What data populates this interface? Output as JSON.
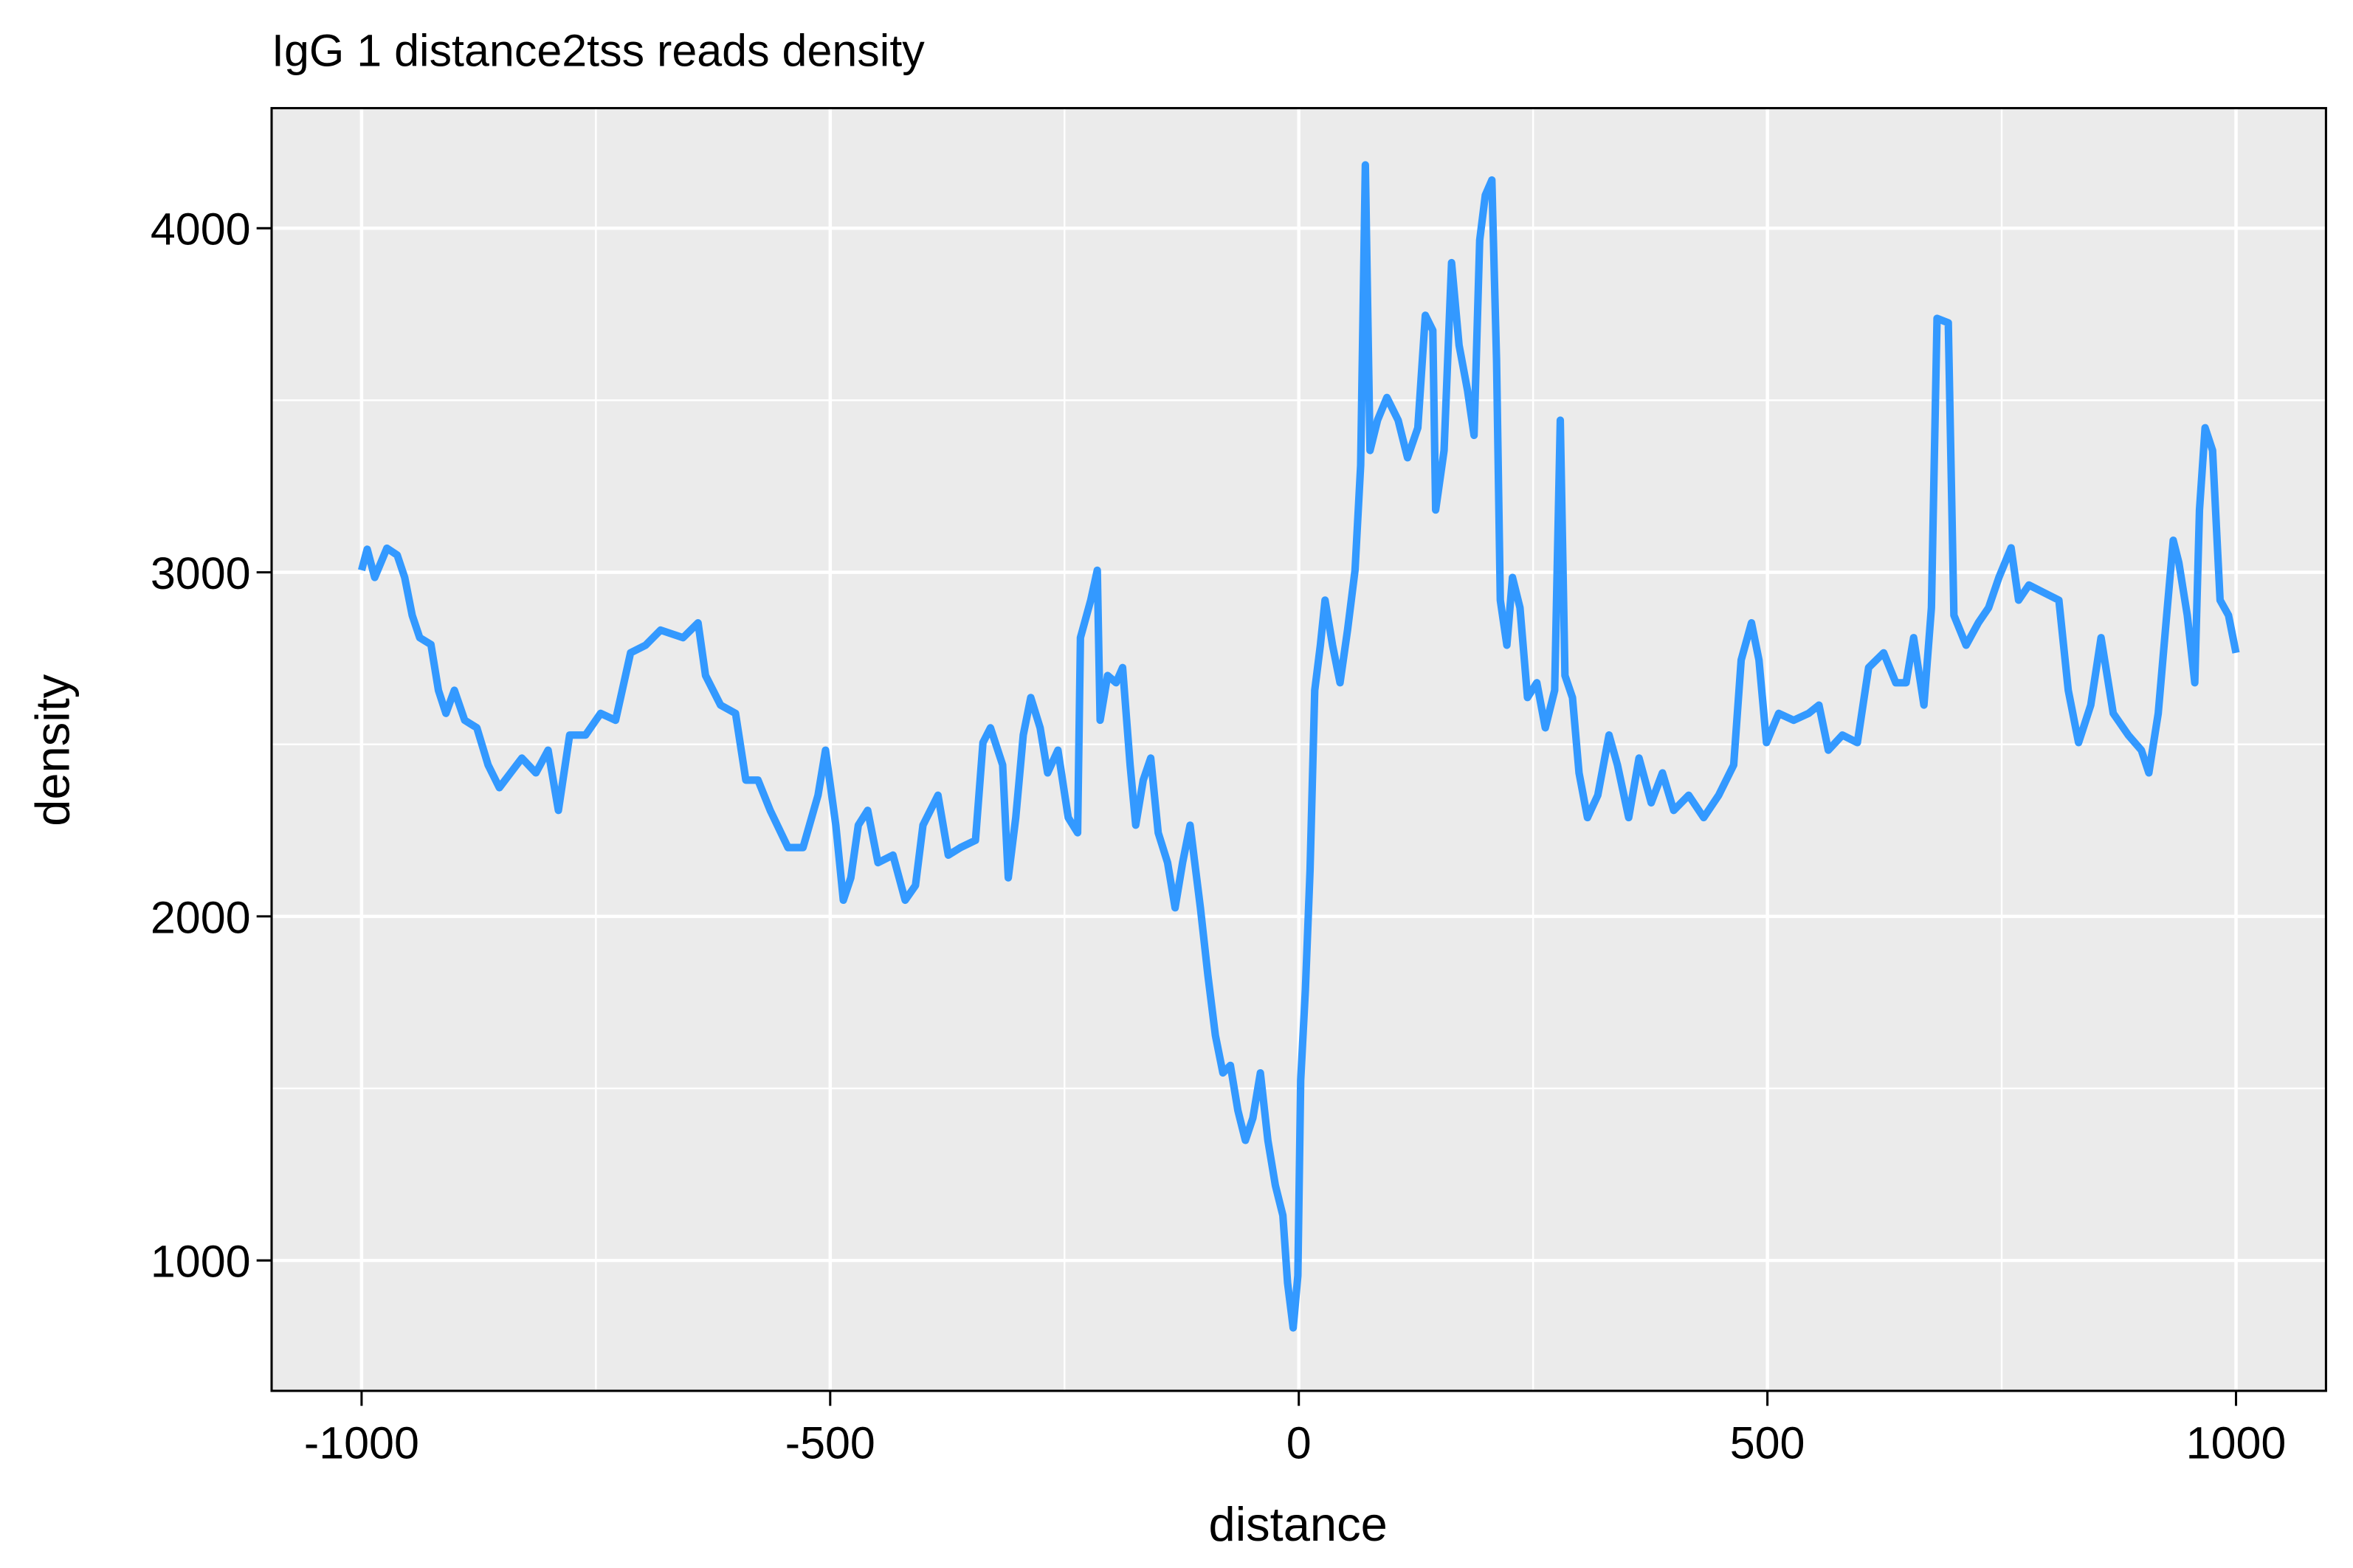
{
  "chart_data": {
    "type": "line",
    "title": "IgG 1 distance2tss reads density",
    "x_label": "distance",
    "y_label": "density",
    "xlim": [
      -1096,
      1096
    ],
    "ylim": [
      621,
      4349
    ],
    "xticks": [
      -1000,
      -500,
      0,
      500,
      1000
    ],
    "yticks": [
      1000,
      2000,
      3000,
      4000
    ],
    "xminor": [
      -750,
      -250,
      250,
      750
    ],
    "yminor": [
      1500,
      2500,
      3500
    ],
    "grid": true,
    "background": "#ebebeb",
    "x": [
      -1000,
      -994,
      -986,
      -973,
      -962,
      -954,
      -946,
      -938,
      -926,
      -918,
      -910,
      -901,
      -890,
      -877,
      -865,
      -853,
      -841,
      -829,
      -814,
      -801,
      -790,
      -778,
      -761,
      -745,
      -729,
      -713,
      -697,
      -681,
      -657,
      -641,
      -633,
      -617,
      -601,
      -590,
      -577,
      -564,
      -545,
      -529,
      -513,
      -505,
      -494,
      -486,
      -478,
      -470,
      -460,
      -449,
      -433,
      -420,
      -409,
      -401,
      -385,
      -374,
      -361,
      -345,
      -337,
      -329,
      -316,
      -310,
      -302,
      -294,
      -286,
      -276,
      -268,
      -257,
      -246,
      -236,
      -233,
      -222,
      -215,
      -212,
      -204,
      -195,
      -188,
      -180,
      -174,
      -166,
      -158,
      -150,
      -140,
      -132,
      -124,
      -116,
      -105,
      -97,
      -89,
      -81,
      -73,
      -65,
      -57,
      -49,
      -41,
      -33,
      -25,
      -17,
      -12,
      -6,
      -1,
      2,
      7,
      12,
      17,
      23,
      28,
      36,
      44,
      52,
      60,
      66,
      71,
      76,
      84,
      94,
      106,
      116,
      127,
      135,
      143,
      146,
      155,
      163,
      171,
      180,
      187,
      193,
      199,
      206,
      211,
      215,
      222,
      228,
      236,
      244,
      254,
      263,
      273,
      279,
      284,
      292,
      299,
      308,
      319,
      331,
      340,
      352,
      363,
      376,
      388,
      400,
      416,
      432,
      448,
      464,
      472,
      483,
      491,
      499,
      512,
      528,
      544,
      555,
      565,
      580,
      596,
      608,
      624,
      637,
      648,
      656,
      667,
      675,
      681,
      693,
      699,
      712,
      725,
      736,
      747,
      760,
      768,
      779,
      795,
      811,
      821,
      832,
      845,
      856,
      869,
      885,
      899,
      907,
      917,
      926,
      933,
      939,
      948,
      956,
      961,
      967,
      975,
      983,
      992,
      1000
    ],
    "series": [
      {
        "name": "density",
        "color": "#3399ff",
        "values": [
          3006,
          3067,
          2985,
          3070,
          3050,
          2985,
          2875,
          2810,
          2790,
          2657,
          2590,
          2657,
          2570,
          2548,
          2440,
          2374,
          2417,
          2460,
          2417,
          2483,
          2308,
          2527,
          2527,
          2590,
          2570,
          2766,
          2788,
          2832,
          2810,
          2853,
          2700,
          2614,
          2590,
          2396,
          2396,
          2308,
          2200,
          2200,
          2352,
          2483,
          2265,
          2047,
          2112,
          2265,
          2308,
          2156,
          2178,
          2047,
          2090,
          2265,
          2352,
          2178,
          2200,
          2221,
          2505,
          2548,
          2440,
          2112,
          2287,
          2527,
          2636,
          2548,
          2417,
          2483,
          2287,
          2243,
          2810,
          2919,
          3006,
          2570,
          2700,
          2679,
          2723,
          2440,
          2265,
          2396,
          2460,
          2243,
          2156,
          2025,
          2156,
          2265,
          2025,
          1829,
          1654,
          1545,
          1567,
          1436,
          1349,
          1414,
          1545,
          1349,
          1218,
          1131,
          935,
          804,
          956,
          1523,
          1785,
          2134,
          2657,
          2788,
          2919,
          2788,
          2679,
          2832,
          3006,
          3311,
          4184,
          3354,
          3442,
          3508,
          3442,
          3333,
          3420,
          3747,
          3703,
          3181,
          3354,
          3900,
          3660,
          3529,
          3398,
          3965,
          4096,
          4140,
          3616,
          2919,
          2788,
          2985,
          2897,
          2636,
          2679,
          2548,
          2657,
          3442,
          2700,
          2636,
          2417,
          2287,
          2352,
          2527,
          2440,
          2287,
          2460,
          2330,
          2417,
          2308,
          2352,
          2287,
          2352,
          2440,
          2745,
          2853,
          2745,
          2505,
          2590,
          2570,
          2590,
          2614,
          2483,
          2527,
          2505,
          2723,
          2766,
          2679,
          2679,
          2810,
          2614,
          2897,
          3738,
          3725,
          2875,
          2788,
          2853,
          2897,
          2985,
          3071,
          2919,
          2963,
          2941,
          2919,
          2657,
          2505,
          2614,
          2810,
          2590,
          2527,
          2483,
          2417,
          2590,
          2875,
          3093,
          3028,
          2875,
          2679,
          3181,
          3420,
          3354,
          2919,
          2875,
          2766
        ]
      }
    ]
  }
}
